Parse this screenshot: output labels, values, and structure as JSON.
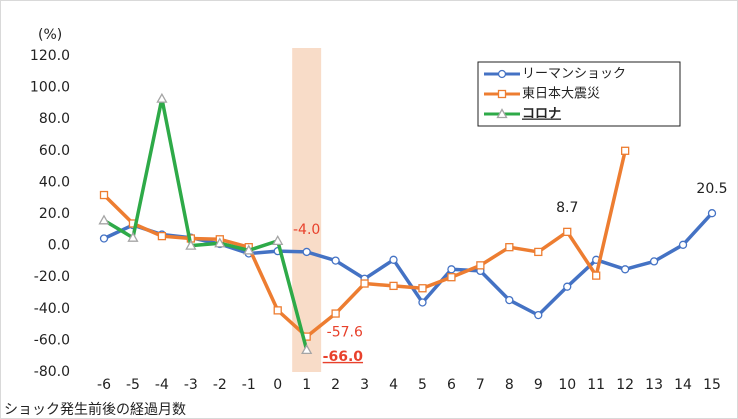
{
  "chart_data": {
    "type": "line",
    "y_unit": "(%)",
    "x_label": "ショック発生前後の経過月数",
    "x": [
      -6,
      -5,
      -4,
      -3,
      -2,
      -1,
      0,
      1,
      2,
      3,
      4,
      5,
      6,
      7,
      8,
      9,
      10,
      11,
      12,
      13,
      14,
      15
    ],
    "xlim": [
      -6,
      15
    ],
    "xticks": [
      -6,
      -5,
      -4,
      -3,
      -2,
      -1,
      0,
      1,
      2,
      3,
      4,
      5,
      6,
      7,
      8,
      9,
      10,
      11,
      12,
      13,
      14,
      15
    ],
    "ylim": [
      -80,
      120
    ],
    "yticks": [
      {
        "value": -80,
        "label": "-80.0"
      },
      {
        "value": -60,
        "label": "-60.0"
      },
      {
        "value": -40,
        "label": "-40.0"
      },
      {
        "value": -20,
        "label": "-20.0"
      },
      {
        "value": 0,
        "label": "0.0"
      },
      {
        "value": 20,
        "label": "20.0"
      },
      {
        "value": 40,
        "label": "40.0"
      },
      {
        "value": 60,
        "label": "60.0"
      },
      {
        "value": 80,
        "label": "80.0"
      },
      {
        "value": 100,
        "label": "100.0"
      },
      {
        "value": 120,
        "label": "120.0"
      }
    ],
    "grid": false,
    "highlight": {
      "from": 0.5,
      "to": 1.5,
      "color": "#f8dcc8"
    },
    "series": [
      {
        "name": "リーマンショック",
        "color": "#4472c4",
        "marker": "circle",
        "values": [
          4.5,
          13,
          7,
          5,
          1,
          -5,
          -3.5,
          -4.0,
          -9.5,
          -21,
          -9,
          -36,
          -15,
          -16,
          -34.5,
          -44,
          -26,
          -9,
          -15,
          -10,
          0.5,
          20.5
        ],
        "value_labels": [
          null,
          null,
          null,
          null,
          null,
          null,
          null,
          "-4.0",
          null,
          null,
          null,
          null,
          null,
          null,
          null,
          null,
          null,
          null,
          null,
          null,
          null,
          "20.5"
        ]
      },
      {
        "name": "東日本大震災",
        "color": "#ed7d31",
        "marker": "square",
        "values": [
          32,
          14,
          6,
          4.5,
          4,
          -1,
          -41,
          -57.6,
          -43,
          -24,
          -25.5,
          -27,
          -20,
          -12.5,
          -1,
          -4,
          8.7,
          -19,
          60,
          null,
          null,
          null
        ],
        "value_labels": [
          null,
          null,
          null,
          null,
          null,
          null,
          null,
          "-57.6",
          null,
          null,
          null,
          null,
          null,
          null,
          null,
          null,
          "8.7",
          null,
          null,
          null,
          null,
          null
        ]
      },
      {
        "name": "コロナ",
        "color": "#2eaa48",
        "marker": "triangle",
        "marker_color": "#a5a5a5",
        "values": [
          16,
          5,
          93,
          0,
          1.5,
          -3,
          3,
          -66.0,
          null,
          null,
          null,
          null,
          null,
          null,
          null,
          null,
          null,
          null,
          null,
          null,
          null,
          null
        ],
        "value_labels": [
          null,
          null,
          null,
          null,
          null,
          null,
          null,
          "-66.0",
          null,
          null,
          null,
          null,
          null,
          null,
          null,
          null,
          null,
          null,
          null,
          null,
          null,
          null
        ]
      }
    ]
  }
}
